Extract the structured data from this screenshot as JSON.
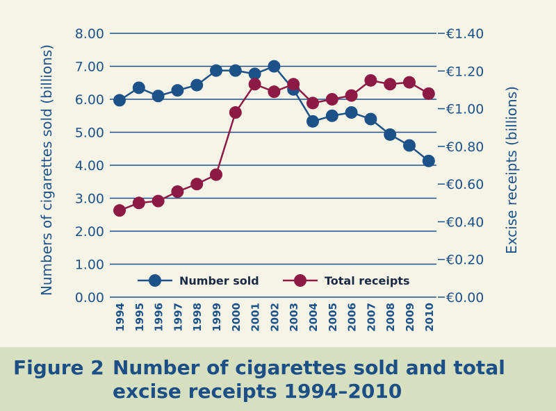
{
  "chart_data": {
    "type": "line",
    "x": [
      1994,
      1995,
      1996,
      1997,
      1998,
      1999,
      2000,
      2001,
      2002,
      2003,
      2004,
      2005,
      2006,
      2007,
      2008,
      2009,
      2010
    ],
    "series": [
      {
        "name": "Number sold",
        "axis": "left",
        "color": "#1d5289",
        "values": [
          5.97,
          6.35,
          6.1,
          6.27,
          6.43,
          6.87,
          6.87,
          6.77,
          7.0,
          6.3,
          5.33,
          5.5,
          5.6,
          5.4,
          4.93,
          4.6,
          4.13
        ]
      },
      {
        "name": "Total receipts",
        "axis": "right",
        "color": "#8c1a45",
        "values": [
          0.46,
          0.5,
          0.51,
          0.56,
          0.6,
          0.65,
          0.98,
          1.13,
          1.09,
          1.13,
          1.03,
          1.05,
          1.07,
          1.15,
          1.13,
          1.14,
          1.08
        ]
      }
    ],
    "ylabel_left": "Numbers of cigarettes sold (billions)",
    "ylabel_right": "Excise receipts (billions)",
    "ylim_left": [
      0,
      8
    ],
    "ylim_right": [
      0,
      1.4
    ],
    "yticks_left": [
      "0.00",
      "1.00",
      "2.00",
      "3.00",
      "4.00",
      "5.00",
      "6.00",
      "7.00",
      "8.00"
    ],
    "yticks_right": [
      "€0.00",
      "€0.20",
      "€0.40",
      "€0.60",
      "€0.80",
      "€1.00",
      "€1.20",
      "€1.40"
    ],
    "xtick_labels": [
      "1994",
      "1995",
      "1996",
      "1997",
      "1998",
      "1999",
      "2000",
      "2001",
      "2002",
      "2003",
      "2004",
      "2005",
      "2006",
      "2007",
      "2008",
      "2009",
      "2010"
    ],
    "grid": true,
    "legend_placement": "bottom-center"
  },
  "caption": {
    "label": "Figure 2",
    "title": "Number of cigarettes sold and total excise receipts 1994–2010"
  }
}
